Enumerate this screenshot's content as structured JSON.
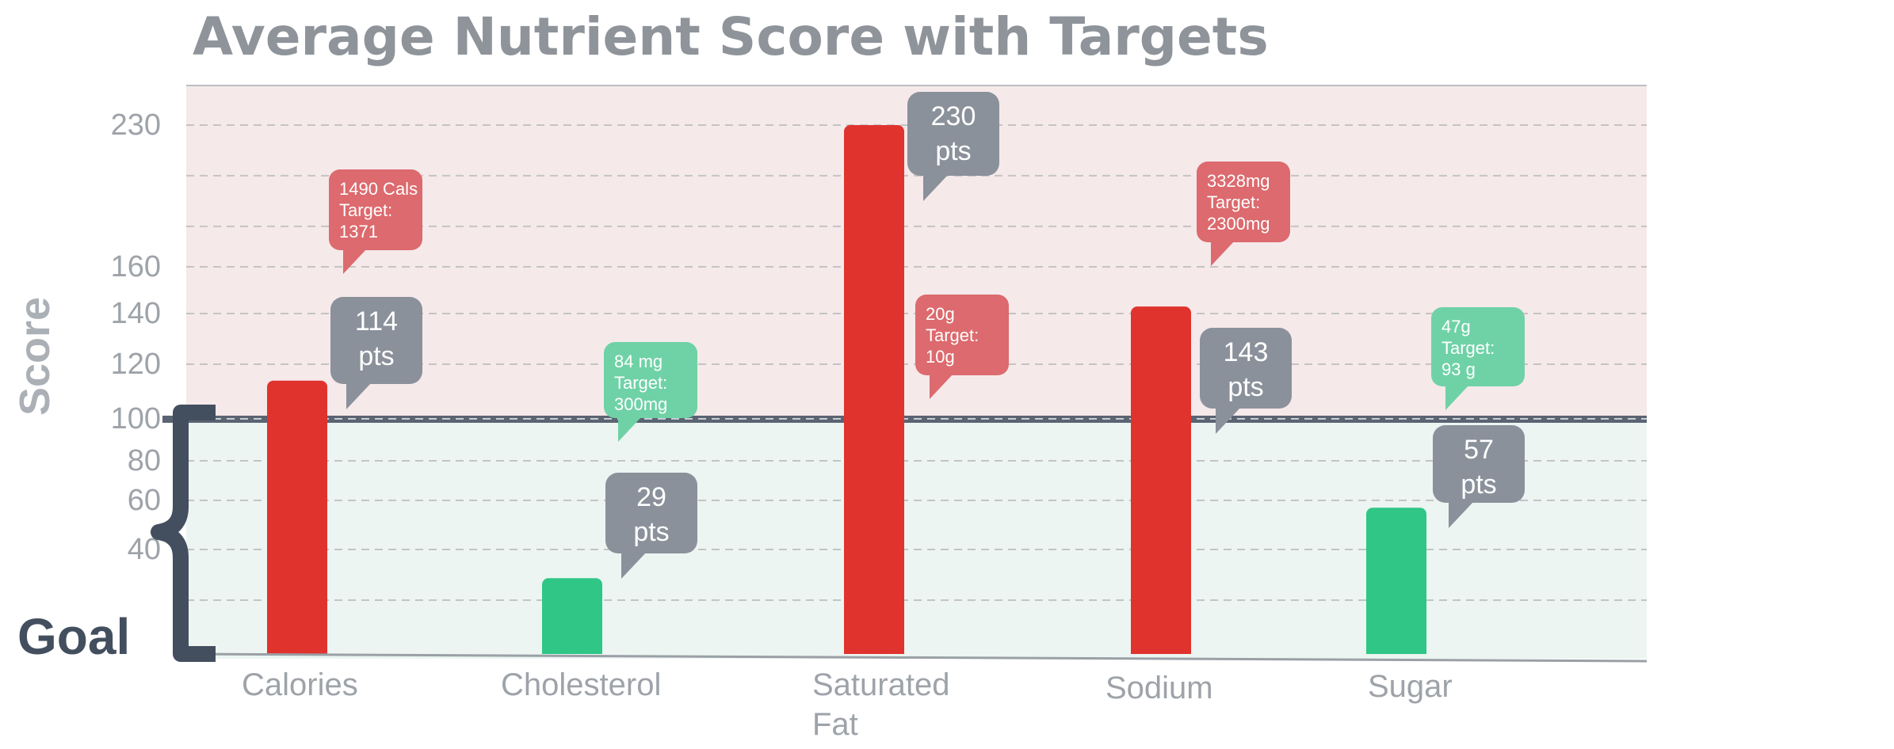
{
  "chart_data": {
    "type": "bar",
    "title": "Average Nutrient Score with Targets",
    "ylabel": "Score",
    "goal_label": "Goal",
    "categories": [
      "Calories",
      "Cholesterol",
      "Saturated Fat",
      "Sodium",
      "Sugar"
    ],
    "category_label_lines": [
      [
        "Calories"
      ],
      [
        "Cholesterol"
      ],
      [
        "Saturated",
        "Fat"
      ],
      [
        "Sodium"
      ],
      [
        "Sugar"
      ]
    ],
    "values": [
      114,
      29,
      230,
      143,
      57
    ],
    "score_callouts": [
      [
        "114",
        "pts"
      ],
      [
        "29",
        "pts"
      ],
      [
        "230",
        "pts"
      ],
      [
        "143",
        "pts"
      ],
      [
        "57",
        "pts"
      ]
    ],
    "target_callouts": [
      [
        "1490 Cals",
        "Target:",
        "1371"
      ],
      [
        "84 mg",
        "Target:",
        "300mg"
      ],
      [
        "20g",
        "Target:",
        "10g"
      ],
      [
        "3328mg",
        "Target:",
        "2300mg"
      ],
      [
        "47g",
        "Target:",
        "93 g"
      ]
    ],
    "status": [
      "over",
      "under",
      "over",
      "over",
      "under"
    ],
    "goal_threshold": 100,
    "y_tick_labels": [
      "40",
      "60",
      "80",
      "100",
      "120",
      "140",
      "160",
      "230"
    ],
    "grid": true,
    "colors": {
      "over_bar": "#e0332e",
      "under_bar": "#2fc686",
      "over_zone": "#f6e9ea",
      "under_zone": "#ecf5f1",
      "over_callout": "#dc6a6e",
      "under_callout": "#6fd2a6",
      "score_callout": "#8a919b",
      "goal_bracket": "#434f5f",
      "axis_text": "#9ea3a9",
      "title": "#8f949b"
    }
  }
}
